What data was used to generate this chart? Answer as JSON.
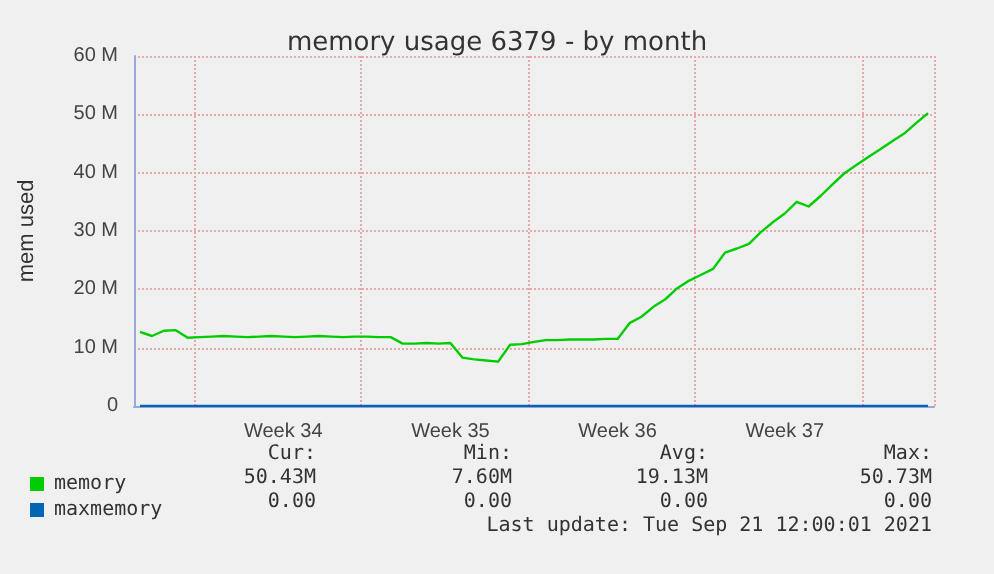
{
  "chart_data": {
    "type": "line",
    "title": "memory usage 6379 - by month",
    "ylabel": "mem used",
    "categories": [
      null,
      null,
      null,
      null,
      null,
      null,
      null,
      null,
      null,
      null,
      null,
      null,
      "Week 34",
      null,
      null,
      null,
      null,
      null,
      null,
      null,
      null,
      null,
      null,
      null,
      null,
      null,
      "Week 35",
      null,
      null,
      null,
      null,
      null,
      null,
      null,
      null,
      null,
      null,
      null,
      null,
      null,
      "Week 36",
      null,
      null,
      null,
      null,
      null,
      null,
      null,
      null,
      null,
      null,
      null,
      null,
      null,
      "Week 37",
      null,
      null,
      null,
      null,
      null,
      null,
      null,
      null,
      null,
      null,
      null,
      null
    ],
    "series": [
      {
        "name": "memory",
        "color": "#00cc00",
        "values": [
          12.7,
          12.0,
          12.9,
          13.0,
          11.7,
          11.8,
          11.9,
          12.0,
          11.9,
          11.8,
          11.9,
          12.0,
          11.9,
          11.8,
          11.9,
          12.0,
          11.9,
          11.8,
          11.9,
          11.9,
          11.8,
          11.8,
          10.7,
          10.7,
          10.8,
          10.7,
          10.8,
          8.3,
          8.0,
          7.8,
          7.6,
          10.5,
          10.6,
          11.0,
          11.3,
          11.3,
          11.4,
          11.4,
          11.4,
          11.5,
          11.5,
          14.2,
          15.3,
          17.0,
          18.3,
          20.2,
          21.5,
          22.5,
          23.5,
          26.3,
          27.0,
          27.8,
          29.8,
          31.5,
          33.0,
          35.0,
          34.2,
          36.0,
          38.0,
          39.9,
          41.3,
          42.7,
          44.0,
          45.4,
          46.7,
          48.5,
          50.2
        ]
      },
      {
        "name": "maxmemory",
        "color": "#0066b3",
        "values": [
          0,
          0,
          0,
          0,
          0,
          0,
          0,
          0,
          0,
          0,
          0,
          0,
          0,
          0,
          0,
          0,
          0,
          0,
          0,
          0,
          0,
          0,
          0,
          0,
          0,
          0,
          0,
          0,
          0,
          0,
          0,
          0,
          0,
          0,
          0,
          0,
          0,
          0,
          0,
          0,
          0,
          0,
          0,
          0,
          0,
          0,
          0,
          0,
          0,
          0,
          0,
          0,
          0,
          0,
          0,
          0,
          0,
          0,
          0,
          0,
          0,
          0,
          0,
          0,
          0,
          0,
          0
        ]
      }
    ],
    "ylim": [
      0,
      60
    ],
    "yticks": [
      0,
      {
        "value": 10,
        "label": "10 M"
      },
      {
        "value": 20,
        "label": "20 M"
      },
      {
        "value": 30,
        "label": "30 M"
      },
      {
        "value": 40,
        "label": "40 M"
      },
      {
        "value": 50,
        "label": "50 M"
      },
      {
        "value": 60,
        "label": "60 M"
      }
    ],
    "grid": true,
    "legend": "bottom left",
    "marker": "none",
    "line_style": "solid",
    "annotations": [
      "Cur:",
      "Min:",
      "Avg:",
      "Max:",
      "50.43M",
      "7.60M",
      "19.13M",
      "50.73M",
      "0.00",
      "0.00",
      "0.00",
      "0.00",
      "Last update: Tue Sep 21 12:00:01 2021"
    ]
  }
}
